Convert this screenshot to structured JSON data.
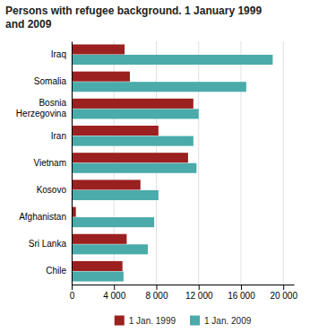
{
  "chart_data": {
    "type": "bar",
    "orientation": "horizontal",
    "title": "Persons with refugee background. 1 January 1999\nand 2009",
    "categories": [
      "Iraq",
      "Somalia",
      "Bosnia\nHerzegovina",
      "Iran",
      "Vietnam",
      "Kosovo",
      "Afghanistan",
      "Sri Lanka",
      "Chile"
    ],
    "series": [
      {
        "name": "1 Jan. 1999",
        "color": "#9b2020",
        "values": [
          5000,
          5500,
          11500,
          8200,
          11000,
          6500,
          400,
          5200,
          4800
        ]
      },
      {
        "name": "1 Jan. 2009",
        "color": "#4aabaa",
        "values": [
          19000,
          16500,
          12000,
          11500,
          11800,
          8200,
          7800,
          7200,
          4900
        ]
      }
    ],
    "xlim": [
      0,
      21000
    ],
    "xticks": [
      0,
      {
        "value": 4000,
        "label": "4 000"
      },
      {
        "value": 8000,
        "label": "8 000"
      },
      {
        "value": 12000,
        "label": "12 000"
      },
      {
        "value": 16000,
        "label": "16 000"
      },
      {
        "value": 20000,
        "label": "20 000"
      }
    ],
    "grid": true,
    "legend": "bottom"
  }
}
